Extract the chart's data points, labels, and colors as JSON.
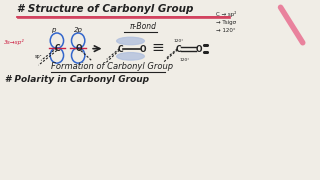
{
  "bg_color": "#f0ede6",
  "title": "# Structure of Carbonyl Group",
  "title_color": "#222222",
  "underline_color": "#cc2244",
  "subtitle": "Formation of Carbonyl Group",
  "bottom_text": "# Polarity in Carbonyl Group",
  "side_note_lines": [
    "C → sp²",
    "→ Tsigσ",
    "→ 120°"
  ],
  "pi_bond_label": "π-Bond",
  "sp2_label": "3s→sp²",
  "orbital_p_label": "p",
  "orbital_2p_label": "2p",
  "arrow_color": "#222222",
  "blue_color": "#3366cc",
  "pink_color": "#cc2244",
  "light_blue": "#aabbdd",
  "pen_color": "#e87090"
}
